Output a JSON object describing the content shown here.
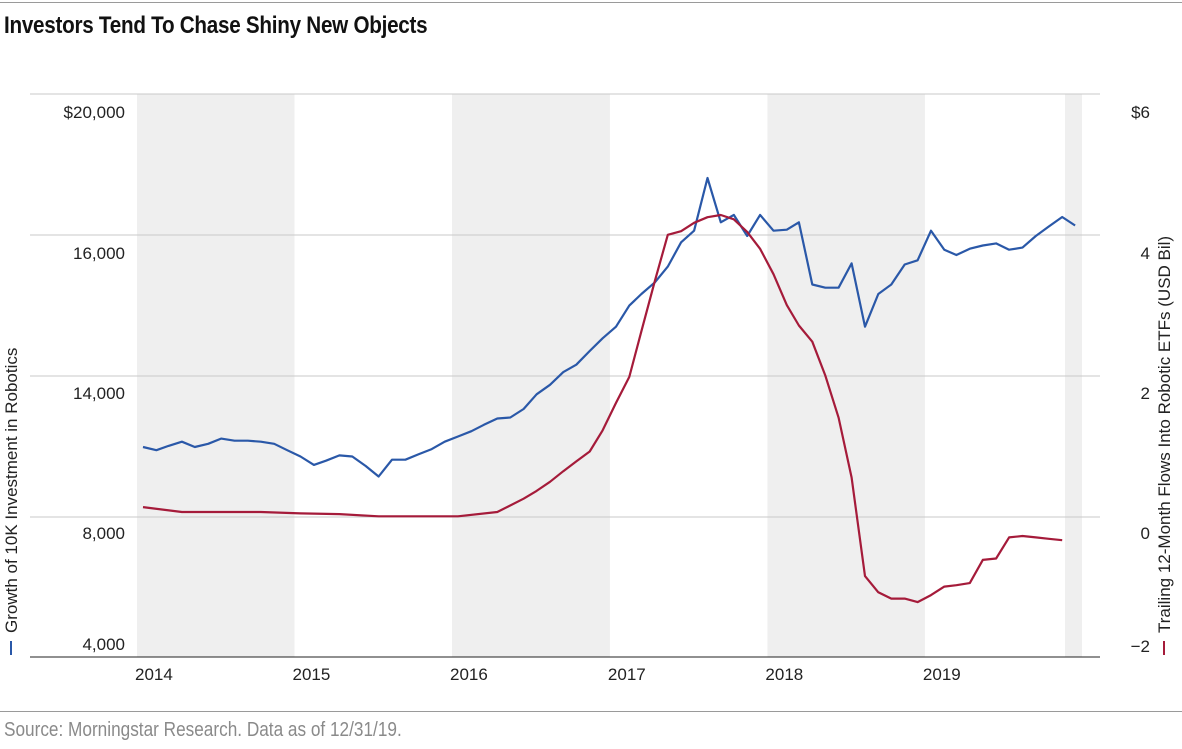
{
  "title": "Investors Tend To Chase Shiny New Objects",
  "source": "Source: Morningstar Research. Data as of 12/31/19.",
  "colors": {
    "growth_line": "#2a58a8",
    "flows_line": "#a51b3a",
    "band": "#efefef",
    "grid": "#c8c8c8"
  },
  "chart_data": {
    "type": "line",
    "title": "Investors Tend To Chase Shiny New Objects",
    "x_tick_labels": [
      "2014",
      "2015",
      "2016",
      "2017",
      "2018",
      "2019"
    ],
    "xlim": [
      "2014-01-01",
      "2019-12-31"
    ],
    "shaded_years": [
      "2014",
      "2016",
      "2018"
    ],
    "left_axis": {
      "label": "Growth of 10K Investment in Robotics",
      "tick_labels": [
        "$20,000",
        "16,000",
        "14,000",
        "8,000",
        "4,000"
      ]
    },
    "right_axis": {
      "label": "Trailing 12-Month Flows Into Robotic ETFs (USD Bil)",
      "tick_labels": [
        "$6",
        "4",
        "2",
        "0",
        "−2"
      ],
      "ylim": [
        -2,
        6
      ]
    },
    "series": [
      {
        "name": "Growth of 10K Investment in Robotics",
        "axis": "left",
        "x": [
          "2014-01",
          "2014-02",
          "2014-03",
          "2014-04",
          "2014-05",
          "2014-06",
          "2014-07",
          "2014-08",
          "2014-09",
          "2014-10",
          "2014-11",
          "2014-12",
          "2015-01",
          "2015-02",
          "2015-03",
          "2015-04",
          "2015-05",
          "2015-06",
          "2015-07",
          "2015-08",
          "2015-09",
          "2015-10",
          "2015-11",
          "2015-12",
          "2016-01",
          "2016-02",
          "2016-03",
          "2016-04",
          "2016-05",
          "2016-06",
          "2016-07",
          "2016-08",
          "2016-09",
          "2016-10",
          "2016-11",
          "2016-12",
          "2017-01",
          "2017-02",
          "2017-03",
          "2017-04",
          "2017-05",
          "2017-06",
          "2017-07",
          "2017-08",
          "2017-09",
          "2017-10",
          "2017-11",
          "2017-12",
          "2018-01",
          "2018-02",
          "2018-03",
          "2018-04",
          "2018-05",
          "2018-06",
          "2018-07",
          "2018-08",
          "2018-09",
          "2018-10",
          "2018-11",
          "2018-12",
          "2019-01",
          "2019-02",
          "2019-03",
          "2019-04",
          "2019-05",
          "2019-06",
          "2019-07",
          "2019-08",
          "2019-09",
          "2019-10",
          "2019-11",
          "2019-12"
        ],
        "y_scale_pos": [
          1.0,
          0.97,
          1.01,
          1.05,
          1.0,
          1.03,
          1.08,
          1.06,
          1.06,
          1.05,
          1.03,
          0.97,
          0.91,
          0.83,
          0.87,
          0.92,
          0.91,
          0.82,
          0.72,
          0.88,
          0.88,
          0.93,
          0.98,
          1.05,
          1.1,
          1.15,
          1.21,
          1.27,
          1.28,
          1.36,
          1.5,
          1.59,
          1.71,
          1.78,
          1.91,
          2.03,
          2.14,
          2.34,
          2.45,
          2.56,
          2.71,
          2.94,
          3.05,
          3.55,
          3.13,
          3.2,
          3.0,
          3.2,
          3.05,
          3.06,
          3.13,
          2.54,
          2.51,
          2.51,
          2.74,
          2.14,
          2.45,
          2.54,
          2.73,
          2.77,
          3.05,
          2.87,
          2.82,
          2.88,
          2.91,
          2.93,
          2.87,
          2.89,
          3.0,
          3.09,
          3.18,
          3.1
        ],
        "color": "#2a58a8"
      },
      {
        "name": "Trailing 12-Month Flows Into Robotic ETFs (USD Bil)",
        "axis": "right",
        "x": [
          "2014-01",
          "2014-04",
          "2014-07",
          "2014-10",
          "2015-01",
          "2015-04",
          "2015-07",
          "2015-10",
          "2016-01",
          "2016-04",
          "2016-06",
          "2016-07",
          "2016-08",
          "2016-09",
          "2016-10",
          "2016-11",
          "2016-12",
          "2017-01",
          "2017-02",
          "2017-03",
          "2017-04",
          "2017-05",
          "2017-06",
          "2017-07",
          "2017-08",
          "2017-09",
          "2017-10",
          "2017-11",
          "2017-12",
          "2018-01",
          "2018-02",
          "2018-03",
          "2018-04",
          "2018-05",
          "2018-06",
          "2018-07",
          "2018-08",
          "2018-09",
          "2018-10",
          "2018-11",
          "2018-12",
          "2019-01",
          "2019-02",
          "2019-03",
          "2019-04",
          "2019-05",
          "2019-06",
          "2019-07",
          "2019-08",
          "2019-09",
          "2019-10",
          "2019-11"
        ],
        "values": [
          0.13,
          0.06,
          0.06,
          0.06,
          0.04,
          0.03,
          0.0,
          0.0,
          0.0,
          0.06,
          0.25,
          0.36,
          0.49,
          0.64,
          0.78,
          0.92,
          1.22,
          1.61,
          1.98,
          2.63,
          3.34,
          4.0,
          4.05,
          4.17,
          4.25,
          4.28,
          4.22,
          4.04,
          3.8,
          3.44,
          3.0,
          2.71,
          2.48,
          2.0,
          1.4,
          0.55,
          -0.85,
          -1.08,
          -1.17,
          -1.17,
          -1.22,
          -1.12,
          -1.0,
          -0.98,
          -0.95,
          -0.62,
          -0.6,
          -0.3,
          -0.28,
          -0.3,
          -0.32,
          -0.34
        ],
        "color": "#a51b3a"
      }
    ]
  }
}
